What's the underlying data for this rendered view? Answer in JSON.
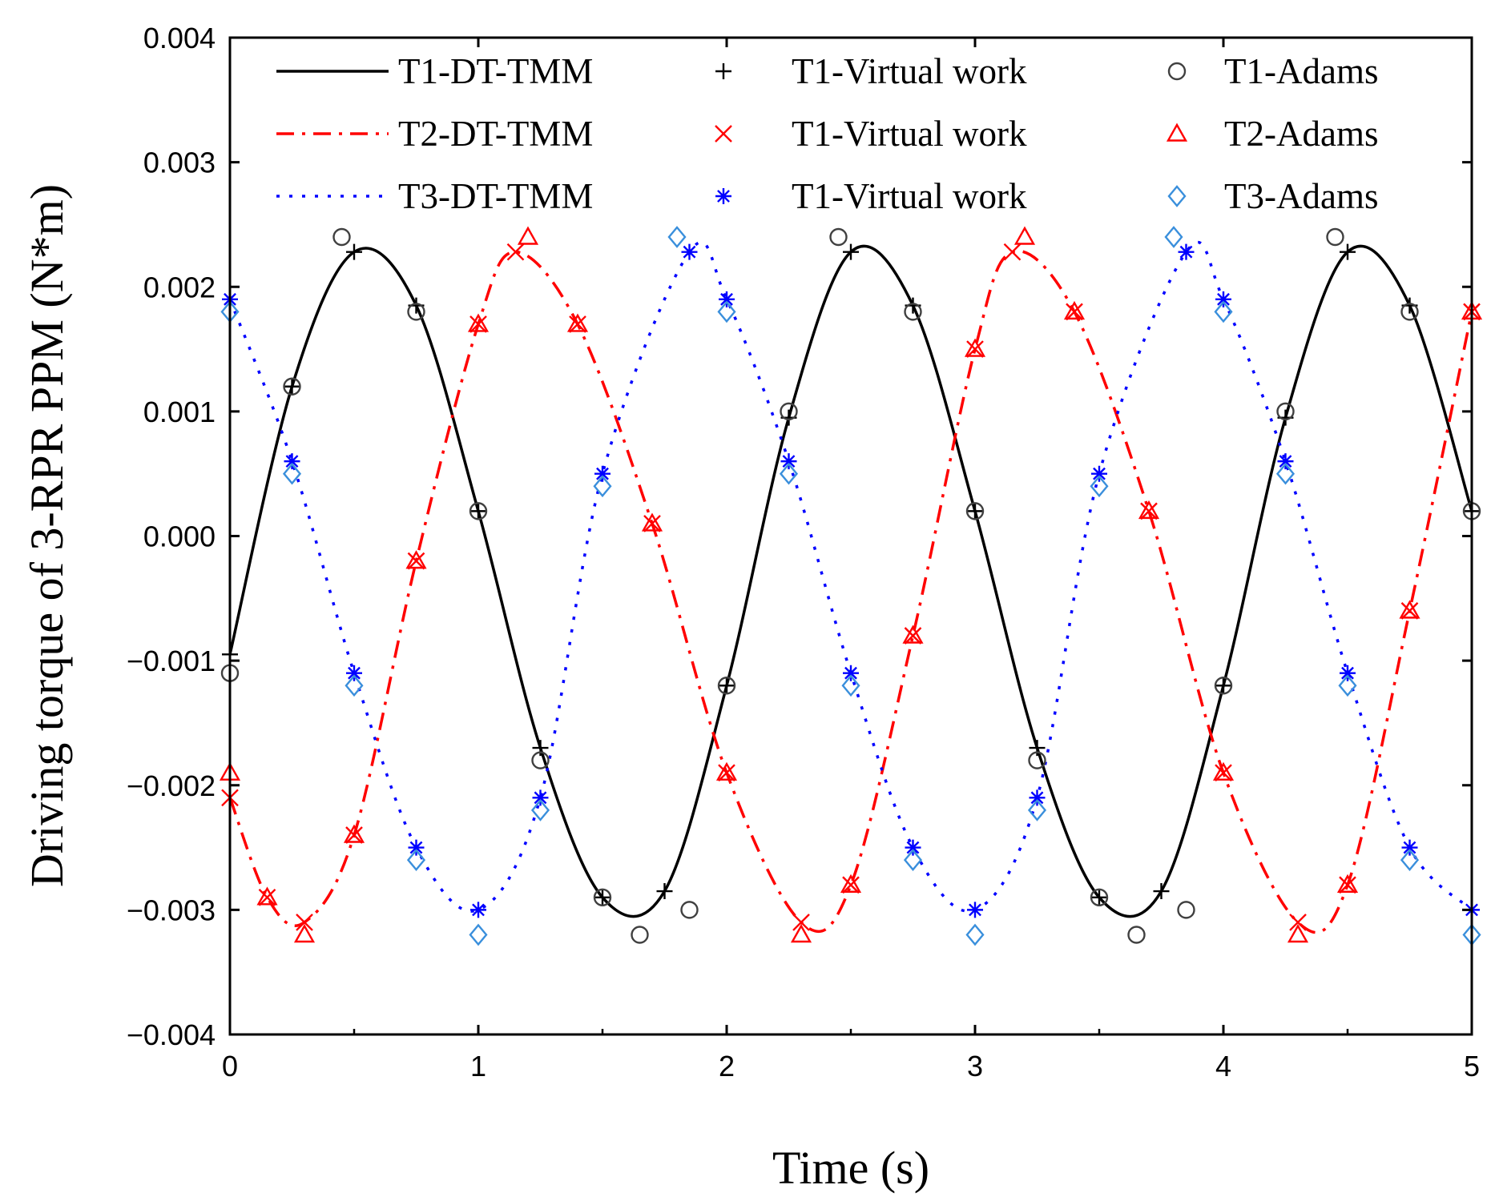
{
  "chart_data": {
    "type": "line",
    "title": "",
    "xlabel": "Time (s)",
    "ylabel": "Driving torque of 3-RPR PPM (N*m)",
    "xlim": [
      0,
      5
    ],
    "ylim": [
      -0.004,
      0.004
    ],
    "xticks": [
      0,
      1,
      2,
      3,
      4,
      5
    ],
    "xtick_labels": [
      "0",
      "1",
      "2",
      "3",
      "4",
      "5"
    ],
    "yticks": [
      0.004,
      0.003,
      0.002,
      0.001,
      0.0,
      -0.001,
      -0.002,
      -0.003,
      -0.004
    ],
    "ytick_labels": [
      "0.004",
      "0.003",
      "0.002",
      "0.001",
      "0.000",
      "−0.001",
      "−0.002",
      "−0.003",
      "−0.004"
    ],
    "grid": false,
    "legend_position": "top",
    "series": [
      {
        "name": "T1-DT-TMM",
        "kind": "line",
        "style": "solid",
        "color": "#000000",
        "x": [
          0,
          0.25,
          0.5,
          0.75,
          1.0,
          1.25,
          1.5,
          1.75,
          2.0,
          2.25,
          2.5,
          2.75,
          3.0,
          3.25,
          3.5,
          3.75,
          4.0,
          4.25,
          4.5,
          4.75,
          5.0
        ],
        "y": [
          -0.00095,
          0.0012,
          0.00228,
          0.00185,
          0.0002,
          -0.0017,
          -0.0029,
          -0.00285,
          -0.0012,
          0.00095,
          0.00228,
          0.00185,
          0.0002,
          -0.0017,
          -0.0029,
          -0.00285,
          -0.0012,
          0.00095,
          0.00228,
          0.00185,
          0.0002
        ]
      },
      {
        "name": "T2-DT-TMM",
        "kind": "line",
        "style": "dashdot",
        "color": "#ff0000",
        "x": [
          0,
          0.15,
          0.3,
          0.5,
          0.75,
          1.0,
          1.15,
          1.4,
          1.7,
          2.0,
          2.3,
          2.5,
          2.75,
          3.0,
          3.15,
          3.4,
          3.7,
          4.0,
          4.3,
          4.5,
          4.75,
          5.0
        ],
        "y": [
          -0.0021,
          -0.0029,
          -0.0031,
          -0.0024,
          -0.0002,
          0.0017,
          0.00228,
          0.0017,
          0.0001,
          -0.0019,
          -0.0031,
          -0.0028,
          -0.0008,
          0.0015,
          0.00228,
          0.0018,
          0.0002,
          -0.0019,
          -0.0031,
          -0.0028,
          -0.0006,
          0.0018
        ]
      },
      {
        "name": "T3-DT-TMM",
        "kind": "line",
        "style": "dotted",
        "color": "#0000ff",
        "x": [
          0,
          0.25,
          0.5,
          0.75,
          1.0,
          1.25,
          1.5,
          1.85,
          2.0,
          2.25,
          2.5,
          2.75,
          3.0,
          3.25,
          3.5,
          3.85,
          4.0,
          4.25,
          4.5,
          4.75,
          5.0
        ],
        "y": [
          0.0019,
          0.0006,
          -0.0011,
          -0.0025,
          -0.003,
          -0.0021,
          0.0005,
          0.00228,
          0.0019,
          0.0006,
          -0.0011,
          -0.0025,
          -0.003,
          -0.0021,
          0.0005,
          0.00228,
          0.0019,
          0.0006,
          -0.0011,
          -0.0025,
          -0.003
        ]
      },
      {
        "name": "T1-Virtual work",
        "kind": "markers",
        "marker": "plus",
        "color": "#000000",
        "x": [
          0,
          0.25,
          0.5,
          0.75,
          1.0,
          1.25,
          1.5,
          1.75,
          2.0,
          2.25,
          2.5,
          2.75,
          3.0,
          3.25,
          3.5,
          3.75,
          4.0,
          4.25,
          4.5,
          4.75,
          5.0
        ],
        "y": [
          -0.00095,
          0.0012,
          0.00228,
          0.00185,
          0.0002,
          -0.0017,
          -0.0029,
          -0.00285,
          -0.0012,
          0.00095,
          0.00228,
          0.00185,
          0.0002,
          -0.0017,
          -0.0029,
          -0.00285,
          -0.0012,
          0.00095,
          0.00228,
          0.00185,
          0.0002
        ]
      },
      {
        "name": "T1-Virtual work",
        "kind": "markers",
        "marker": "x",
        "color": "#ff0000",
        "x": [
          0,
          0.15,
          0.3,
          0.5,
          0.75,
          1.0,
          1.15,
          1.4,
          1.7,
          2.0,
          2.3,
          2.5,
          2.75,
          3.0,
          3.15,
          3.4,
          3.7,
          4.0,
          4.3,
          4.5,
          4.75,
          5.0
        ],
        "y": [
          -0.0021,
          -0.0029,
          -0.0031,
          -0.0024,
          -0.0002,
          0.0017,
          0.00228,
          0.0017,
          0.0001,
          -0.0019,
          -0.0031,
          -0.0028,
          -0.0008,
          0.0015,
          0.00228,
          0.0018,
          0.0002,
          -0.0019,
          -0.0031,
          -0.0028,
          -0.0006,
          0.0018
        ]
      },
      {
        "name": "T1-Virtual work",
        "kind": "markers",
        "marker": "asterisk",
        "color": "#0000ff",
        "x": [
          0,
          0.25,
          0.5,
          0.75,
          1.0,
          1.25,
          1.5,
          1.85,
          2.0,
          2.25,
          2.5,
          2.75,
          3.0,
          3.25,
          3.5,
          3.85,
          4.0,
          4.25,
          4.5,
          4.75,
          5.0
        ],
        "y": [
          0.0019,
          0.0006,
          -0.0011,
          -0.0025,
          -0.003,
          -0.0021,
          0.0005,
          0.00228,
          0.0019,
          0.0006,
          -0.0011,
          -0.0025,
          -0.003,
          -0.0021,
          0.0005,
          0.00228,
          0.0019,
          0.0006,
          -0.0011,
          -0.0025,
          -0.003
        ]
      },
      {
        "name": "T1-Adams",
        "kind": "markers",
        "marker": "circle",
        "color": "#404040",
        "x": [
          0,
          0.25,
          0.45,
          0.75,
          1.0,
          1.25,
          1.5,
          1.65,
          1.85,
          2.0,
          2.25,
          2.45,
          2.75,
          3.0,
          3.25,
          3.5,
          3.65,
          3.85,
          4.0,
          4.25,
          4.45,
          4.75,
          5.0
        ],
        "y": [
          -0.0011,
          0.0012,
          0.0024,
          0.0018,
          0.0002,
          -0.0018,
          -0.0029,
          -0.0032,
          -0.003,
          -0.0012,
          0.001,
          0.0024,
          0.0018,
          0.0002,
          -0.0018,
          -0.0029,
          -0.0032,
          -0.003,
          -0.0012,
          0.001,
          0.0024,
          0.0018,
          0.0002
        ]
      },
      {
        "name": "T2-Adams",
        "kind": "markers",
        "marker": "triangle",
        "color": "#ff0000",
        "x": [
          0,
          0.15,
          0.3,
          0.5,
          0.75,
          1.0,
          1.2,
          1.4,
          1.7,
          2.0,
          2.3,
          2.5,
          2.75,
          3.0,
          3.2,
          3.4,
          3.7,
          4.0,
          4.3,
          4.5,
          4.75,
          5.0
        ],
        "y": [
          -0.0019,
          -0.0029,
          -0.0032,
          -0.0024,
          -0.0002,
          0.0017,
          0.0024,
          0.0017,
          0.0001,
          -0.0019,
          -0.0032,
          -0.0028,
          -0.0008,
          0.0015,
          0.0024,
          0.0018,
          0.0002,
          -0.0019,
          -0.0032,
          -0.0028,
          -0.0006,
          0.0018
        ]
      },
      {
        "name": "T3-Adams",
        "kind": "markers",
        "marker": "diamond",
        "color": "#3a8fdc",
        "x": [
          0,
          0.25,
          0.5,
          0.75,
          1.0,
          1.25,
          1.5,
          1.8,
          2.0,
          2.25,
          2.5,
          2.75,
          3.0,
          3.25,
          3.5,
          3.8,
          4.0,
          4.25,
          4.5,
          4.75,
          5.0
        ],
        "y": [
          0.0018,
          0.0005,
          -0.0012,
          -0.0026,
          -0.0032,
          -0.0022,
          0.0004,
          0.0024,
          0.0018,
          0.0005,
          -0.0012,
          -0.0026,
          -0.0032,
          -0.0022,
          0.0004,
          0.0024,
          0.0018,
          0.0005,
          -0.0012,
          -0.0026,
          -0.0032
        ]
      }
    ],
    "legend_layout": [
      [
        0,
        3,
        6
      ],
      [
        1,
        4,
        7
      ],
      [
        2,
        5,
        8
      ]
    ]
  }
}
